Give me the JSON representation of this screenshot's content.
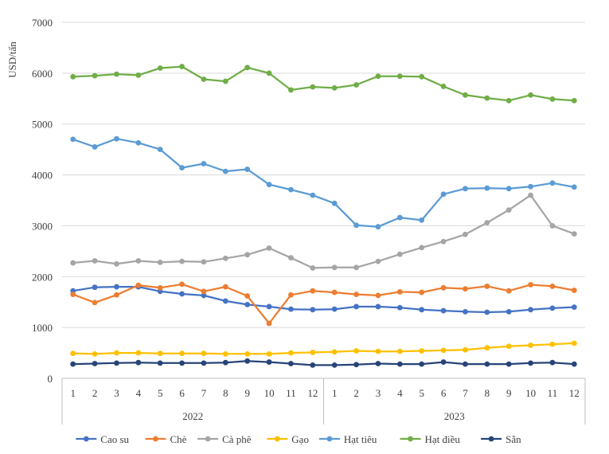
{
  "chart_data": {
    "type": "line",
    "title": "",
    "ylabel": "USD/tấn",
    "xlabel": "",
    "ylim": [
      0,
      7000
    ],
    "yticks": [
      "0",
      "1000",
      "2000",
      "3000",
      "4000",
      "5000",
      "6000",
      "7000"
    ],
    "grid": true,
    "legend": "bottom",
    "categories": [
      "1",
      "2",
      "3",
      "4",
      "5",
      "6",
      "7",
      "8",
      "9",
      "10",
      "11",
      "12",
      "1",
      "2",
      "3",
      "4",
      "5",
      "6",
      "7",
      "8",
      "9",
      "10",
      "11",
      "12"
    ],
    "groups": [
      {
        "label": "2022",
        "start": 0,
        "count": 12
      },
      {
        "label": "2023",
        "start": 12,
        "count": 12
      }
    ],
    "series": [
      {
        "name": "Cao su",
        "color": "#4472C4",
        "values": [
          1720,
          1790,
          1800,
          1800,
          1710,
          1660,
          1630,
          1520,
          1450,
          1410,
          1360,
          1350,
          1360,
          1410,
          1410,
          1390,
          1350,
          1330,
          1310,
          1300,
          1310,
          1350,
          1380,
          1400
        ]
      },
      {
        "name": "Chè",
        "color": "#ED7D31",
        "values": [
          1650,
          1490,
          1640,
          1830,
          1780,
          1850,
          1710,
          1800,
          1620,
          1080,
          1640,
          1720,
          1690,
          1650,
          1630,
          1700,
          1690,
          1780,
          1760,
          1810,
          1720,
          1840,
          1810,
          1730
        ]
      },
      {
        "name": "Cà phê",
        "color": "#A5A5A5",
        "values": [
          2270,
          2310,
          2250,
          2310,
          2280,
          2300,
          2290,
          2360,
          2430,
          2560,
          2370,
          2170,
          2180,
          2180,
          2300,
          2440,
          2570,
          2690,
          2830,
          3060,
          3310,
          3600,
          3000,
          2840
        ]
      },
      {
        "name": "Gạo",
        "color": "#FFC000",
        "values": [
          490,
          480,
          500,
          500,
          490,
          490,
          490,
          480,
          480,
          480,
          500,
          510,
          520,
          540,
          530,
          530,
          540,
          550,
          560,
          600,
          630,
          650,
          670,
          690
        ]
      },
      {
        "name": "Hạt tiêu",
        "color": "#5B9BD5",
        "values": [
          4700,
          4550,
          4710,
          4630,
          4500,
          4140,
          4220,
          4070,
          4110,
          3810,
          3710,
          3600,
          3440,
          3010,
          2980,
          3160,
          3110,
          3620,
          3730,
          3740,
          3730,
          3770,
          3840,
          3760
        ]
      },
      {
        "name": "Hạt điều",
        "color": "#70AD47",
        "values": [
          5930,
          5950,
          5980,
          5960,
          6100,
          6130,
          5880,
          5840,
          6110,
          6000,
          5670,
          5730,
          5710,
          5770,
          5940,
          5940,
          5930,
          5740,
          5570,
          5510,
          5460,
          5570,
          5490,
          5460
        ]
      },
      {
        "name": "Sắn",
        "color": "#264478",
        "values": [
          280,
          290,
          300,
          310,
          300,
          300,
          300,
          310,
          340,
          320,
          290,
          260,
          260,
          270,
          290,
          280,
          280,
          320,
          280,
          280,
          280,
          300,
          310,
          280
        ]
      }
    ]
  }
}
